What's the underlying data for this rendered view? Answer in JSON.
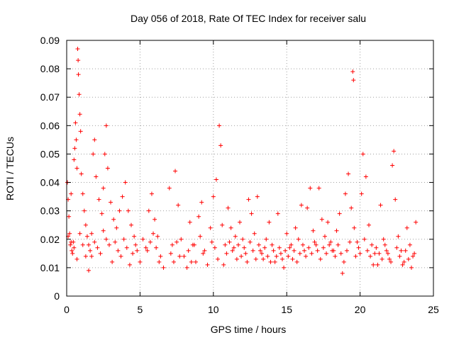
{
  "chart_data": {
    "type": "scatter",
    "title": "Day 056 of 2018, Rate Of TEC Index for receiver salu",
    "xlabel": "GPS time / hours",
    "ylabel": "ROTI / TECUs",
    "xlim": [
      0,
      25
    ],
    "ylim": [
      0,
      0.09
    ],
    "xticks": [
      0,
      5,
      10,
      15,
      20,
      25
    ],
    "xtick_labels": [
      "0",
      "5",
      "10",
      "15",
      "20",
      "25"
    ],
    "yticks": [
      0,
      0.01,
      0.02,
      0.03,
      0.04,
      0.05,
      0.06,
      0.07,
      0.08,
      0.09
    ],
    "ytick_labels": [
      "0",
      "0.01",
      "0.02",
      "0.03",
      "0.04",
      "0.05",
      "0.06",
      "0.07",
      "0.08",
      "0.09"
    ],
    "grid": true,
    "marker": "+",
    "color": "#ff0000",
    "series": [
      {
        "name": "ROTI",
        "points": [
          [
            0.05,
            0.04
          ],
          [
            0.1,
            0.034
          ],
          [
            0.15,
            0.028
          ],
          [
            0.2,
            0.022
          ],
          [
            0.25,
            0.018
          ],
          [
            0.3,
            0.036
          ],
          [
            0.35,
            0.016
          ],
          [
            0.4,
            0.015
          ],
          [
            0.45,
            0.019
          ],
          [
            0.5,
            0.048
          ],
          [
            0.55,
            0.052
          ],
          [
            0.6,
            0.061
          ],
          [
            0.65,
            0.055
          ],
          [
            0.7,
            0.045
          ],
          [
            0.75,
            0.087
          ],
          [
            0.78,
            0.083
          ],
          [
            0.8,
            0.078
          ],
          [
            0.85,
            0.071
          ],
          [
            0.9,
            0.064
          ],
          [
            0.95,
            0.058
          ],
          [
            1.0,
            0.043
          ],
          [
            1.1,
            0.036
          ],
          [
            1.2,
            0.03
          ],
          [
            1.3,
            0.025
          ],
          [
            1.4,
            0.021
          ],
          [
            1.5,
            0.018
          ],
          [
            1.6,
            0.016
          ],
          [
            1.7,
            0.014
          ],
          [
            1.8,
            0.05
          ],
          [
            1.9,
            0.055
          ],
          [
            2.0,
            0.042
          ],
          [
            2.2,
            0.034
          ],
          [
            2.4,
            0.029
          ],
          [
            2.5,
            0.038
          ],
          [
            2.6,
            0.05
          ],
          [
            2.7,
            0.06
          ],
          [
            2.8,
            0.045
          ],
          [
            3.0,
            0.033
          ],
          [
            3.2,
            0.027
          ],
          [
            3.4,
            0.024
          ],
          [
            3.6,
            0.03
          ],
          [
            3.8,
            0.035
          ],
          [
            4.0,
            0.04
          ],
          [
            4.2,
            0.03
          ],
          [
            4.4,
            0.025
          ],
          [
            4.6,
            0.021
          ],
          [
            4.8,
            0.016
          ],
          [
            5.0,
            0.012
          ],
          [
            5.2,
            0.02
          ],
          [
            5.4,
            0.017
          ],
          [
            5.6,
            0.03
          ],
          [
            5.8,
            0.036
          ],
          [
            6.0,
            0.027
          ],
          [
            6.2,
            0.021
          ],
          [
            6.4,
            0.014
          ],
          [
            6.6,
            0.01
          ],
          [
            7.0,
            0.038
          ],
          [
            7.2,
            0.018
          ],
          [
            7.4,
            0.044
          ],
          [
            7.6,
            0.032
          ],
          [
            7.8,
            0.02
          ],
          [
            8.0,
            0.014
          ],
          [
            8.2,
            0.01
          ],
          [
            8.4,
            0.026
          ],
          [
            8.6,
            0.018
          ],
          [
            8.8,
            0.012
          ],
          [
            9.0,
            0.028
          ],
          [
            9.2,
            0.033
          ],
          [
            9.4,
            0.016
          ],
          [
            9.6,
            0.011
          ],
          [
            9.8,
            0.024
          ],
          [
            10.0,
            0.035
          ],
          [
            10.2,
            0.041
          ],
          [
            10.4,
            0.06
          ],
          [
            10.5,
            0.053
          ],
          [
            10.6,
            0.025
          ],
          [
            10.8,
            0.018
          ],
          [
            11.0,
            0.031
          ],
          [
            11.2,
            0.024
          ],
          [
            11.4,
            0.017
          ],
          [
            11.6,
            0.013
          ],
          [
            11.8,
            0.026
          ],
          [
            12.0,
            0.02
          ],
          [
            12.2,
            0.015
          ],
          [
            12.4,
            0.034
          ],
          [
            12.6,
            0.029
          ],
          [
            12.8,
            0.022
          ],
          [
            13.0,
            0.035
          ],
          [
            13.2,
            0.016
          ],
          [
            13.4,
            0.013
          ],
          [
            13.6,
            0.02
          ],
          [
            13.8,
            0.026
          ],
          [
            14.0,
            0.018
          ],
          [
            14.2,
            0.012
          ],
          [
            14.4,
            0.029
          ],
          [
            14.6,
            0.015
          ],
          [
            14.8,
            0.01
          ],
          [
            15.0,
            0.022
          ],
          [
            15.2,
            0.017
          ],
          [
            15.4,
            0.013
          ],
          [
            15.6,
            0.024
          ],
          [
            15.8,
            0.02
          ],
          [
            16.0,
            0.032
          ],
          [
            16.2,
            0.016
          ],
          [
            16.4,
            0.031
          ],
          [
            16.6,
            0.038
          ],
          [
            16.8,
            0.023
          ],
          [
            17.0,
            0.018
          ],
          [
            17.2,
            0.038
          ],
          [
            17.4,
            0.027
          ],
          [
            17.6,
            0.021
          ],
          [
            17.8,
            0.026
          ],
          [
            18.0,
            0.019
          ],
          [
            18.2,
            0.016
          ],
          [
            18.4,
            0.023
          ],
          [
            18.6,
            0.029
          ],
          [
            18.8,
            0.008
          ],
          [
            19.0,
            0.036
          ],
          [
            19.2,
            0.043
          ],
          [
            19.4,
            0.031
          ],
          [
            19.5,
            0.079
          ],
          [
            19.55,
            0.076
          ],
          [
            19.6,
            0.024
          ],
          [
            19.8,
            0.019
          ],
          [
            20.0,
            0.015
          ],
          [
            20.1,
            0.036
          ],
          [
            20.2,
            0.05
          ],
          [
            20.4,
            0.042
          ],
          [
            20.6,
            0.025
          ],
          [
            20.8,
            0.018
          ],
          [
            21.0,
            0.015
          ],
          [
            21.2,
            0.011
          ],
          [
            21.4,
            0.032
          ],
          [
            21.6,
            0.02
          ],
          [
            21.8,
            0.016
          ],
          [
            22.0,
            0.013
          ],
          [
            22.2,
            0.046
          ],
          [
            22.3,
            0.051
          ],
          [
            22.4,
            0.034
          ],
          [
            22.6,
            0.021
          ],
          [
            22.8,
            0.016
          ],
          [
            23.0,
            0.012
          ],
          [
            23.2,
            0.024
          ],
          [
            23.4,
            0.018
          ],
          [
            23.6,
            0.014
          ],
          [
            23.8,
            0.026
          ],
          [
            0.1,
            0.021
          ],
          [
            0.3,
            0.019
          ],
          [
            0.5,
            0.017
          ],
          [
            0.7,
            0.013
          ],
          [
            0.9,
            0.022
          ],
          [
            1.1,
            0.018
          ],
          [
            1.3,
            0.014
          ],
          [
            1.5,
            0.009
          ],
          [
            1.7,
            0.022
          ],
          [
            1.9,
            0.019
          ],
          [
            2.1,
            0.017
          ],
          [
            2.3,
            0.015
          ],
          [
            2.5,
            0.023
          ],
          [
            2.7,
            0.02
          ],
          [
            2.9,
            0.018
          ],
          [
            3.1,
            0.012
          ],
          [
            3.3,
            0.019
          ],
          [
            3.5,
            0.016
          ],
          [
            3.7,
            0.014
          ],
          [
            3.9,
            0.02
          ],
          [
            4.1,
            0.017
          ],
          [
            4.3,
            0.011
          ],
          [
            4.5,
            0.015
          ],
          [
            4.7,
            0.018
          ],
          [
            5.5,
            0.016
          ],
          [
            5.7,
            0.019
          ],
          [
            5.9,
            0.022
          ],
          [
            6.1,
            0.017
          ],
          [
            6.3,
            0.012
          ],
          [
            7.1,
            0.015
          ],
          [
            7.3,
            0.012
          ],
          [
            7.5,
            0.019
          ],
          [
            7.7,
            0.014
          ],
          [
            8.3,
            0.016
          ],
          [
            8.5,
            0.012
          ],
          [
            8.7,
            0.018
          ],
          [
            9.1,
            0.021
          ],
          [
            9.3,
            0.015
          ],
          [
            9.9,
            0.019
          ],
          [
            10.1,
            0.017
          ],
          [
            10.3,
            0.013
          ],
          [
            10.7,
            0.011
          ],
          [
            10.9,
            0.015
          ],
          [
            11.1,
            0.019
          ],
          [
            11.3,
            0.016
          ],
          [
            11.5,
            0.021
          ],
          [
            11.7,
            0.018
          ],
          [
            11.9,
            0.014
          ],
          [
            12.1,
            0.017
          ],
          [
            12.3,
            0.012
          ],
          [
            12.5,
            0.019
          ],
          [
            12.7,
            0.016
          ],
          [
            12.9,
            0.013
          ],
          [
            13.1,
            0.018
          ],
          [
            13.3,
            0.015
          ],
          [
            13.5,
            0.017
          ],
          [
            13.7,
            0.014
          ],
          [
            13.9,
            0.012
          ],
          [
            14.1,
            0.016
          ],
          [
            14.3,
            0.014
          ],
          [
            14.5,
            0.017
          ],
          [
            14.7,
            0.013
          ],
          [
            14.9,
            0.016
          ],
          [
            15.1,
            0.014
          ],
          [
            15.3,
            0.018
          ],
          [
            15.5,
            0.016
          ],
          [
            15.7,
            0.012
          ],
          [
            15.9,
            0.015
          ],
          [
            16.1,
            0.018
          ],
          [
            16.3,
            0.014
          ],
          [
            16.5,
            0.017
          ],
          [
            16.7,
            0.015
          ],
          [
            16.9,
            0.019
          ],
          [
            17.1,
            0.016
          ],
          [
            17.3,
            0.013
          ],
          [
            17.5,
            0.017
          ],
          [
            17.7,
            0.015
          ],
          [
            17.9,
            0.018
          ],
          [
            18.1,
            0.016
          ],
          [
            18.3,
            0.014
          ],
          [
            18.5,
            0.018
          ],
          [
            18.7,
            0.015
          ],
          [
            18.9,
            0.012
          ],
          [
            19.1,
            0.016
          ],
          [
            19.3,
            0.019
          ],
          [
            19.7,
            0.014
          ],
          [
            19.9,
            0.017
          ],
          [
            20.3,
            0.02
          ],
          [
            20.5,
            0.016
          ],
          [
            20.7,
            0.014
          ],
          [
            20.9,
            0.011
          ],
          [
            21.1,
            0.017
          ],
          [
            21.3,
            0.015
          ],
          [
            21.5,
            0.013
          ],
          [
            21.7,
            0.018
          ],
          [
            21.9,
            0.015
          ],
          [
            22.1,
            0.012
          ],
          [
            22.5,
            0.017
          ],
          [
            22.7,
            0.014
          ],
          [
            22.9,
            0.011
          ],
          [
            23.1,
            0.016
          ],
          [
            23.3,
            0.013
          ],
          [
            23.5,
            0.01
          ],
          [
            23.7,
            0.015
          ]
        ]
      }
    ]
  }
}
